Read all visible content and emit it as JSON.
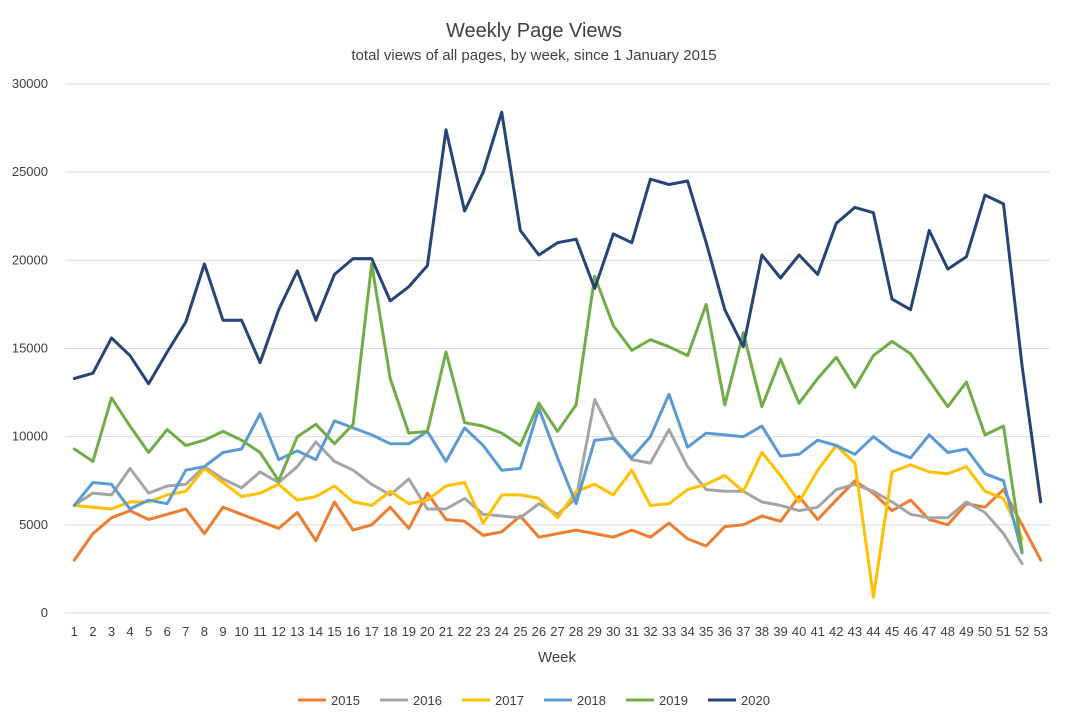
{
  "chart_data": {
    "type": "line",
    "title": "Weekly Page Views",
    "subtitle": "total views of all pages, by week, since 1 January 2015",
    "xlabel": "Week",
    "ylabel": "",
    "ylim": [
      0,
      30000
    ],
    "yticks": [
      "0",
      "5000",
      "10000",
      "15000",
      "20000",
      "25000",
      "30000"
    ],
    "x": [
      1,
      2,
      3,
      4,
      5,
      6,
      7,
      8,
      9,
      10,
      11,
      12,
      13,
      14,
      15,
      16,
      17,
      18,
      19,
      20,
      21,
      22,
      23,
      24,
      25,
      26,
      27,
      28,
      29,
      30,
      31,
      32,
      33,
      34,
      35,
      36,
      37,
      38,
      39,
      40,
      41,
      42,
      43,
      44,
      45,
      46,
      47,
      48,
      49,
      50,
      51,
      52,
      53
    ],
    "grid": "horizontal",
    "legend": "bottom",
    "series": [
      {
        "name": "2015",
        "color": "#ED7D31",
        "values": [
          3000,
          4500,
          5400,
          5800,
          5300,
          5600,
          5900,
          4500,
          6000,
          5600,
          5200,
          4800,
          5700,
          4100,
          6300,
          4700,
          5000,
          6000,
          4800,
          6800,
          5300,
          5200,
          4400,
          4600,
          5500,
          4300,
          4500,
          4700,
          4500,
          4300,
          4700,
          4300,
          5100,
          4200,
          3800,
          4900,
          5000,
          5500,
          5200,
          6600,
          5300,
          6400,
          7500,
          6800,
          5800,
          6400,
          5300,
          5000,
          6200,
          6000,
          7000,
          5000,
          3000
        ]
      },
      {
        "name": "2016",
        "color": "#A5A5A5",
        "values": [
          6100,
          6800,
          6700,
          8200,
          6800,
          7200,
          7300,
          8300,
          7600,
          7100,
          8000,
          7400,
          8300,
          9700,
          8600,
          8100,
          7300,
          6700,
          7600,
          5900,
          5900,
          6500,
          5600,
          5500,
          5400,
          6200,
          5600,
          6500,
          12100,
          10000,
          8700,
          8500,
          10400,
          8300,
          7000,
          6900,
          6900,
          6300,
          6100,
          5800,
          6000,
          7000,
          7300,
          6900,
          6300,
          5600,
          5400,
          5400,
          6300,
          5700,
          4500,
          2800,
          null
        ]
      },
      {
        "name": "2017",
        "color": "#FFC000",
        "values": [
          6100,
          6000,
          5900,
          6300,
          6300,
          6700,
          6900,
          8200,
          7400,
          6600,
          6800,
          7300,
          6400,
          6600,
          7200,
          6300,
          6100,
          6900,
          6200,
          6400,
          7200,
          7400,
          5100,
          6700,
          6700,
          6500,
          5400,
          6900,
          7300,
          6700,
          8100,
          6100,
          6200,
          7000,
          7300,
          7800,
          6900,
          9100,
          7800,
          6300,
          8100,
          9500,
          8500,
          900,
          8000,
          8400,
          8000,
          7900,
          8300,
          6900,
          6500,
          4200,
          null
        ]
      },
      {
        "name": "2018",
        "color": "#5B9BD5",
        "values": [
          6100,
          7400,
          7300,
          5900,
          6400,
          6200,
          8100,
          8300,
          9100,
          9300,
          11300,
          8700,
          9200,
          8700,
          10900,
          10500,
          10100,
          9600,
          9600,
          10300,
          8600,
          10500,
          9500,
          8100,
          8200,
          11600,
          8800,
          6200,
          9800,
          9900,
          8800,
          10000,
          12400,
          9400,
          10200,
          10100,
          10000,
          10600,
          8900,
          9000,
          9800,
          9500,
          9000,
          10000,
          9200,
          8800,
          10100,
          9100,
          9300,
          7900,
          7500,
          3400,
          null
        ]
      },
      {
        "name": "2019",
        "color": "#70AD47",
        "values": [
          9300,
          8600,
          12200,
          10600,
          9100,
          10400,
          9500,
          9800,
          10300,
          9800,
          9100,
          7500,
          10000,
          10700,
          9600,
          10700,
          19800,
          13300,
          10200,
          10300,
          14800,
          10800,
          10600,
          10200,
          9500,
          11900,
          10300,
          11800,
          19100,
          16300,
          14900,
          15500,
          15100,
          14600,
          17500,
          11800,
          15900,
          11700,
          14400,
          11900,
          13300,
          14500,
          12800,
          14600,
          15400,
          14700,
          13200,
          11700,
          13100,
          10100,
          10600,
          3500,
          null
        ]
      },
      {
        "name": "2020",
        "color": "#264478",
        "values": [
          13300,
          13600,
          15600,
          14600,
          13000,
          14800,
          16500,
          19800,
          16600,
          16600,
          14200,
          17200,
          19400,
          16600,
          19200,
          20100,
          20100,
          17700,
          18500,
          19700,
          27400,
          22800,
          25000,
          28400,
          21700,
          20300,
          21000,
          21200,
          18400,
          21500,
          21000,
          24600,
          24300,
          24500,
          21000,
          17200,
          15100,
          20300,
          19000,
          20300,
          19200,
          22100,
          23000,
          22700,
          17800,
          17200,
          21700,
          19500,
          20200,
          23700,
          23200,
          14000,
          6300
        ]
      }
    ]
  }
}
